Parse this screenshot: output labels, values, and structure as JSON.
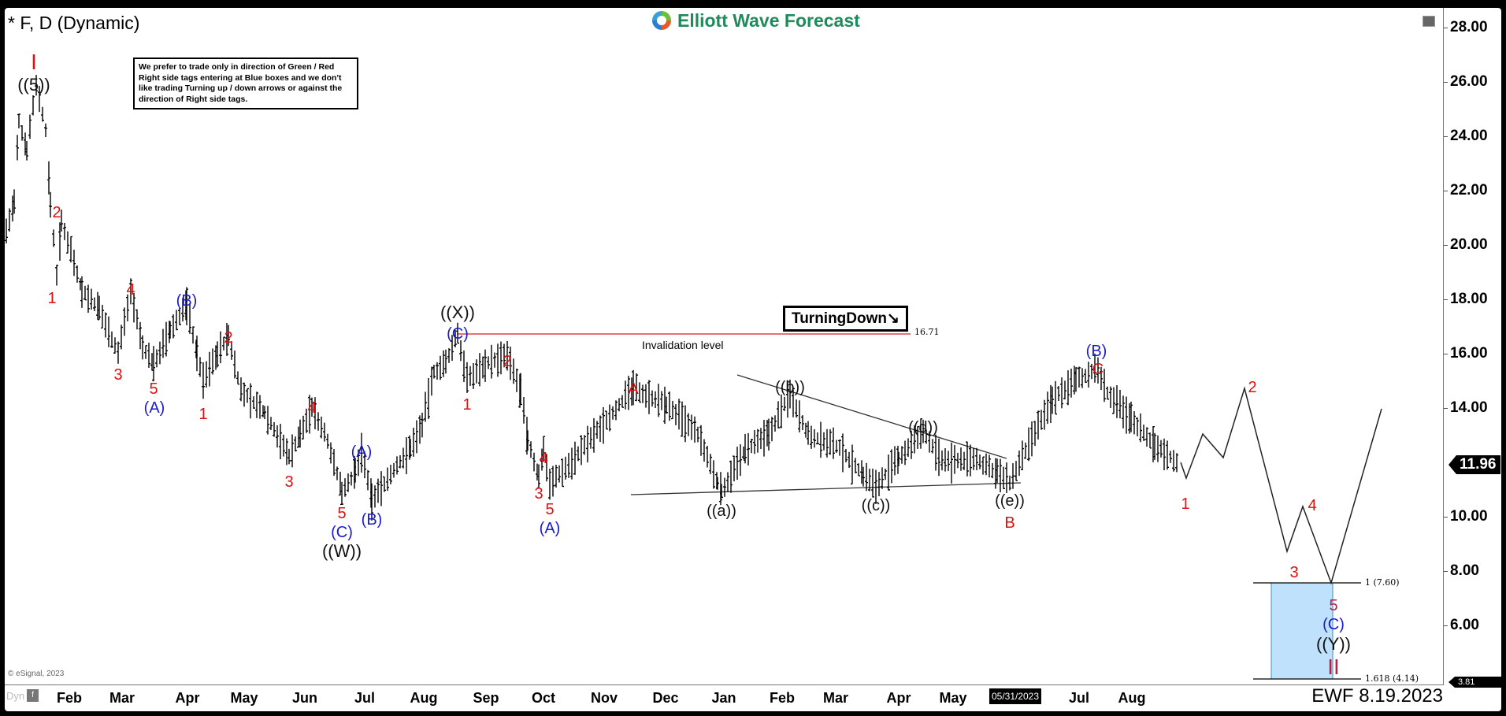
{
  "header": {
    "title": "* F, D (Dynamic)",
    "logo_text": "Elliott Wave Forecast"
  },
  "note": {
    "text": "We prefer to trade only in direction of Green / Red Right side tags entering at Blue boxes and we don't like trading Turning up / down arrows or against the direction of Right side tags."
  },
  "turning_badge": {
    "label": "TurningDown",
    "arrow": "↘"
  },
  "invalidation": {
    "label": "Invalidation level",
    "value": "16.71"
  },
  "fib_box": {
    "top_label": "1 (7.60)",
    "bottom_label": "1.618 (4.14)",
    "color": "#bfe1fb",
    "border": "#3a8fd0"
  },
  "price_axis": {
    "ticks": [
      "28.00",
      "26.00",
      "24.00",
      "22.00",
      "20.00",
      "18.00",
      "16.00",
      "14.00",
      "10.00",
      "8.00",
      "6.00"
    ],
    "last_price": "11.96",
    "low_marker": "3.81"
  },
  "time_axis": {
    "months": [
      "Feb",
      "Mar",
      "Apr",
      "May",
      "Jun",
      "Jul",
      "Aug",
      "Sep",
      "Oct",
      "Nov",
      "Dec",
      "Jan",
      "Feb",
      "Mar",
      "Apr",
      "May",
      "Jul",
      "Aug"
    ],
    "cursor_date": "05/31/2023",
    "dyn_label": "Dyn"
  },
  "footer": {
    "copyright": "© eSignal, 2023",
    "ewf_date": "EWF 8.19.2023"
  },
  "labels": {
    "I": "I",
    "II": "II",
    "w5top": "((5))",
    "W": "((W))",
    "X": "((X))",
    "Y": "((Y))",
    "a": "((a))",
    "b": "((b))",
    "c": "((c))",
    "d": "((d))",
    "e": "((e))",
    "A": "(A)",
    "B": "(B)",
    "C": "(C)",
    "rA": "A",
    "rB": "B",
    "rC": "C",
    "n1": "1",
    "n2": "2",
    "n3": "3",
    "n4": "4",
    "n5": "5"
  },
  "colors": {
    "red": "#e01010",
    "blue": "#1a1ad0",
    "black": "#111111",
    "maroon": "#b0234a",
    "invalidation": "#d22020",
    "brand": "#1f8a5b"
  },
  "chart_data": {
    "type": "bar",
    "subtype": "ohlc-elliott-wave",
    "title": "* F, D (Dynamic)",
    "symbol": "F",
    "interval": "Daily",
    "xlabel": "",
    "ylabel": "",
    "ylim": [
      3.81,
      28.5
    ],
    "y_ticks": [
      6,
      8,
      10,
      14,
      16,
      18,
      20,
      22,
      24,
      26,
      28
    ],
    "x_ticks": [
      "Feb",
      "Mar",
      "Apr",
      "May",
      "Jun",
      "Jul",
      "Aug",
      "Sep",
      "Oct",
      "Nov",
      "Dec",
      "Jan",
      "Feb",
      "Mar",
      "Apr",
      "May",
      "05/31/2023",
      "Jul",
      "Aug"
    ],
    "last_price": 11.96,
    "invalidation_level": 16.71,
    "target_box": {
      "from": 7.6,
      "to": 4.14,
      "fib_ext": [
        "1",
        "1.618"
      ]
    },
    "wave_points": [
      {
        "label": "I / ((5))",
        "month": "Jan 2022",
        "price": 25.9
      },
      {
        "label": "1",
        "month": "Feb 2022",
        "price": 18.9
      },
      {
        "label": "2",
        "month": "Feb 2022",
        "price": 21.0
      },
      {
        "label": "3",
        "month": "Mar 2022",
        "price": 16.0
      },
      {
        "label": "4",
        "month": "Mar 2022",
        "price": 18.3
      },
      {
        "label": "5 / (A)",
        "month": "Mar 2022",
        "price": 15.6
      },
      {
        "label": "(B)",
        "month": "Apr 2022",
        "price": 17.8
      },
      {
        "label": "1",
        "month": "Apr 2022",
        "price": 15.0
      },
      {
        "label": "2",
        "month": "Apr 2022",
        "price": 16.6
      },
      {
        "label": "3",
        "month": "May 2022",
        "price": 12.2
      },
      {
        "label": "4",
        "month": "Jun 2022",
        "price": 14.0
      },
      {
        "label": "5 / (C) / ((W))",
        "month": "Jun 2022",
        "price": 10.9
      },
      {
        "label": "(A)",
        "month": "Jul 2022",
        "price": 12.4
      },
      {
        "label": "(B)",
        "month": "Jul 2022",
        "price": 10.6
      },
      {
        "label": "(C) / ((X))",
        "month": "Aug 2022",
        "price": 16.71
      },
      {
        "label": "1",
        "month": "Aug 2022",
        "price": 15.0
      },
      {
        "label": "2",
        "month": "Sep 2022",
        "price": 15.9
      },
      {
        "label": "3",
        "month": "Sep 2022",
        "price": 11.4
      },
      {
        "label": "4",
        "month": "Sep 2022",
        "price": 12.5
      },
      {
        "label": "5 / (A)",
        "month": "Oct 2022",
        "price": 11.2
      },
      {
        "label": "A",
        "month": "Nov 2022",
        "price": 14.7
      },
      {
        "label": "((a))",
        "month": "Dec 2022",
        "price": 10.9
      },
      {
        "label": "((b))",
        "month": "Feb 2023",
        "price": 14.5
      },
      {
        "label": "((c))",
        "month": "Mar 2023",
        "price": 11.1
      },
      {
        "label": "((d))",
        "month": "Apr 2023",
        "price": 13.1
      },
      {
        "label": "((e)) / B",
        "month": "May 2023",
        "price": 11.2
      },
      {
        "label": "C / (B)",
        "month": "Jul 2023",
        "price": 15.4
      },
      {
        "label": "1 (projected)",
        "month": "Aug 2023",
        "price": 11.3
      },
      {
        "label": "2 (projected)",
        "month": "Sep 2023",
        "price": 14.8
      },
      {
        "label": "3 (projected)",
        "month": "Oct 2023",
        "price": 8.7
      },
      {
        "label": "4 (projected)",
        "month": "Oct 2023",
        "price": 10.4
      },
      {
        "label": "5 / (C) / ((Y)) / II (projected)",
        "month": "Nov 2023",
        "price": 7.6
      }
    ],
    "annotations": [
      "TurningDown",
      "Invalidation level 16.71",
      "We prefer to trade only in direction of Green / Red Right side tags...",
      "EWF 8.19.2023",
      "© eSignal, 2023"
    ]
  }
}
